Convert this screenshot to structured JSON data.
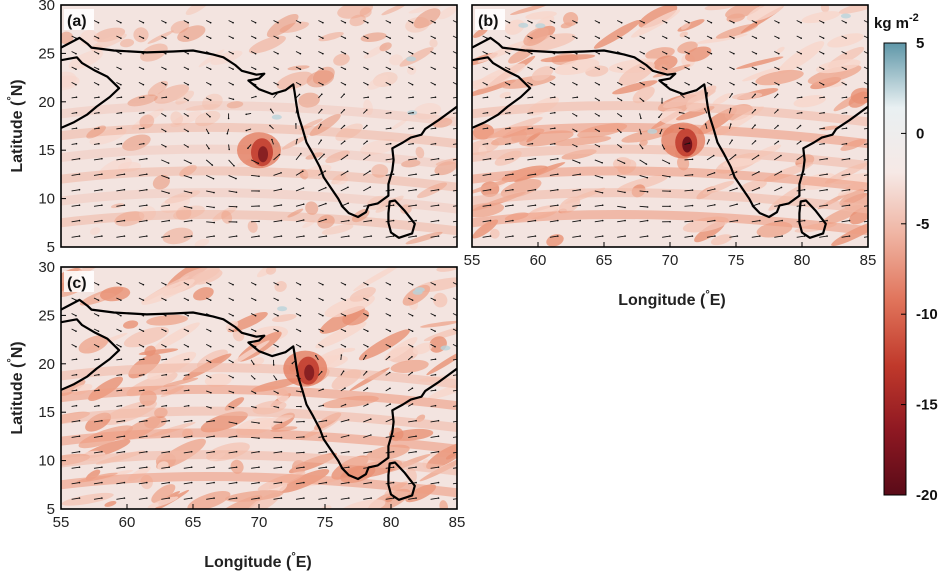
{
  "panels": [
    {
      "id": "a",
      "label": "(a)",
      "lon_min": 55,
      "lon_max": 85,
      "lat_min": 5,
      "lat_max": 30,
      "cyclone_center": [
        70,
        15
      ]
    },
    {
      "id": "b",
      "label": "(b)",
      "lon_min": 55,
      "lon_max": 85,
      "lat_min": 5,
      "lat_max": 30,
      "cyclone_center": [
        71,
        16
      ]
    },
    {
      "id": "c",
      "label": "(c)",
      "lon_min": 55,
      "lon_max": 85,
      "lat_min": 5,
      "lat_max": 30,
      "cyclone_center": [
        73.5,
        19.5
      ]
    }
  ],
  "axes": {
    "lon_ticks": [
      "55",
      "60",
      "65",
      "70",
      "75",
      "80",
      "85"
    ],
    "lat_ticks": [
      "5",
      "10",
      "15",
      "20",
      "25",
      "30"
    ],
    "xlabel_main": "Longitude (",
    "xlabel_deg": "°",
    "xlabel_unit": "E)",
    "ylabel_main": "Latitude (",
    "ylabel_deg": "°",
    "ylabel_unit": "N)"
  },
  "colorbar": {
    "unit_base": "kg m",
    "unit_exp": "-2",
    "ticks": [
      "5",
      "0",
      "-5",
      "-10",
      "-15",
      "-20"
    ],
    "range": [
      -20,
      5
    ],
    "colors": [
      "#5a0b18",
      "#8e1822",
      "#c0392b",
      "#e0735a",
      "#efb2a0",
      "#f6e9e6",
      "#e9f0f2",
      "#5f97a8"
    ]
  },
  "chart_data": {
    "type": "map",
    "variable_unit": "kg m-2",
    "lon_range": [
      55,
      85
    ],
    "lat_range": [
      5,
      30
    ],
    "value_range": [
      -20,
      5
    ],
    "panels": [
      "(a)",
      "(b)",
      "(c)"
    ]
  }
}
